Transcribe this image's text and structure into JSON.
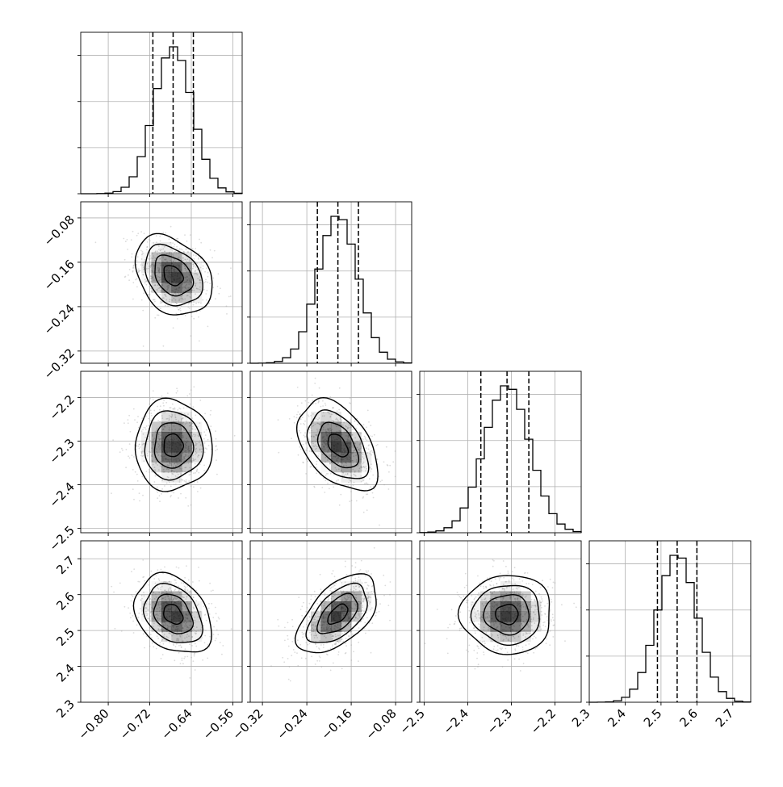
{
  "chart_data": {
    "type": "corner",
    "title": "",
    "params": [
      {
        "ticks": [
          -0.8,
          -0.72,
          -0.64,
          -0.56
        ],
        "tick_labels": [
          "−0.80",
          "−0.72",
          "−0.64",
          "−0.56"
        ],
        "range": [
          -0.853,
          -0.542
        ],
        "quantiles": [
          -0.714,
          -0.675,
          -0.636
        ],
        "mean": -0.675,
        "sd": 0.037
      },
      {
        "ticks": [
          -0.32,
          -0.24,
          -0.16,
          -0.08
        ],
        "tick_labels": [
          "−0.32",
          "−0.24",
          "−0.16",
          "−0.08"
        ],
        "range": [
          -0.342,
          -0.051
        ],
        "quantiles": [
          -0.221,
          -0.184,
          -0.147
        ],
        "mean": -0.184,
        "sd": 0.036
      },
      {
        "ticks": [
          -2.5,
          -2.4,
          -2.3,
          -2.2
        ],
        "tick_labels": [
          "−2.5",
          "−2.4",
          "−2.3",
          "−2.2"
        ],
        "range": [
          -2.51,
          -2.14
        ],
        "quantiles": [
          -2.37,
          -2.31,
          -2.26
        ],
        "mean": -2.31,
        "sd": 0.052
      },
      {
        "ticks": [
          2.3,
          2.4,
          2.5,
          2.6,
          2.7
        ],
        "tick_labels": [
          "2.3",
          "2.4",
          "2.5",
          "2.6",
          "2.7"
        ],
        "range": [
          2.3,
          2.75
        ],
        "quantiles": [
          2.49,
          2.545,
          2.6
        ],
        "mean": 2.545,
        "sd": 0.055
      }
    ],
    "correlations": [
      [
        1.0,
        -0.3,
        0.0,
        -0.3
      ],
      [
        -0.3,
        1.0,
        -0.45,
        0.55
      ],
      [
        0.0,
        -0.45,
        1.0,
        0.0
      ],
      [
        -0.3,
        0.55,
        0.0,
        1.0
      ]
    ],
    "contour_levels": [
      0.5,
      1.0,
      1.5,
      2.0
    ],
    "histogram_bins": 20,
    "grid": true,
    "colors": {
      "line": "#000000",
      "grid": "#b0b0b0",
      "frame": "#000000",
      "density": "#000000",
      "points": "#9a9a9a"
    }
  }
}
